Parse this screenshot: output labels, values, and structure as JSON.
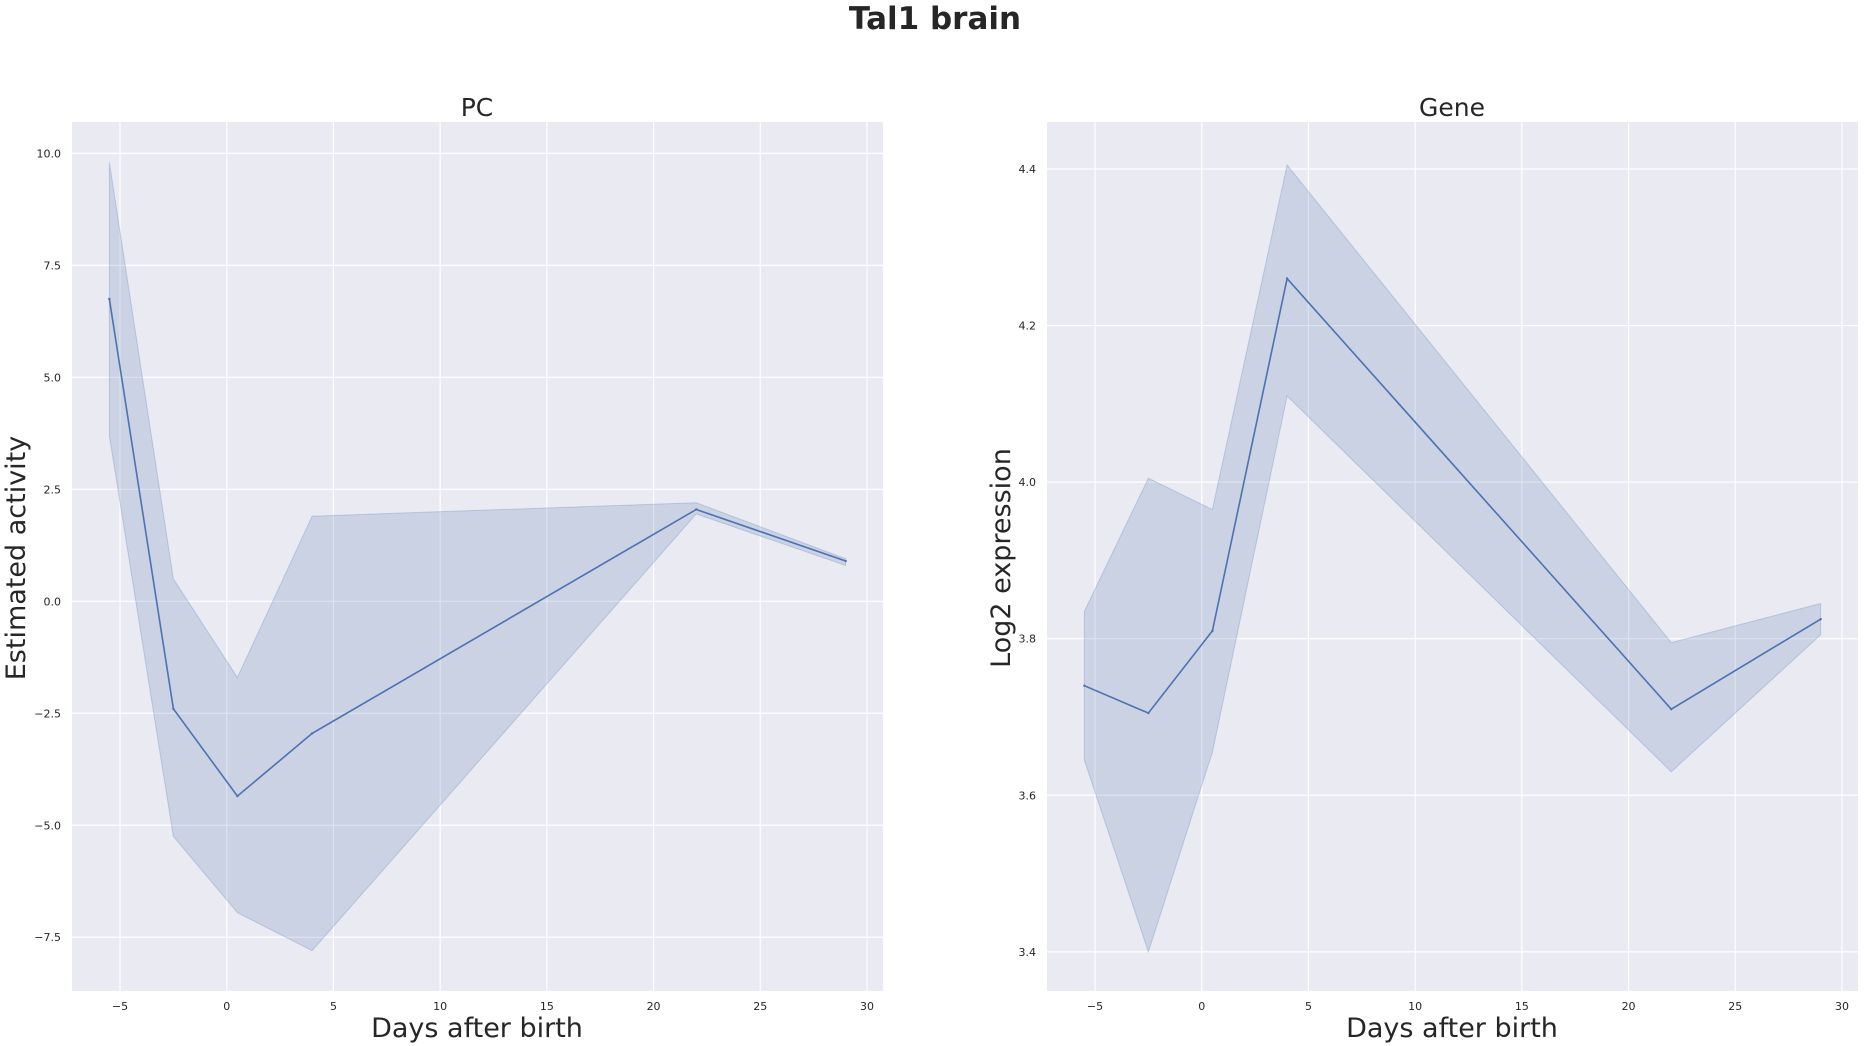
{
  "figure": {
    "suptitle": "Tal1 brain"
  },
  "chart_data": [
    {
      "type": "line",
      "title": "PC",
      "xlabel": "Days after birth",
      "ylabel": "Estimated activity",
      "xlim": [
        -7.25,
        30.75
      ],
      "ylim": [
        -8.7,
        10.7
      ],
      "xticks": [
        -5,
        0,
        5,
        10,
        15,
        20,
        25,
        30
      ],
      "xtick_labels": [
        "−5",
        "0",
        "5",
        "10",
        "15",
        "20",
        "25",
        "30"
      ],
      "yticks": [
        10.0,
        7.5,
        5.0,
        2.5,
        0.0,
        -2.5,
        -5.0,
        -7.5
      ],
      "ytick_labels": [
        "10.0",
        "7.5",
        "5.0",
        "2.5",
        "0.0",
        "−2.5",
        "−5.0",
        "−7.5"
      ],
      "grid": true,
      "colors": {
        "line": "#4c72b0",
        "band": "#4c72b0",
        "background": "#eaeaf2"
      },
      "series": [
        {
          "x": [
            -5.5,
            -2.5,
            0.5,
            4,
            22,
            29
          ],
          "y": [
            6.75,
            -2.4,
            -4.35,
            -2.95,
            2.05,
            0.9
          ],
          "ci_low": [
            3.7,
            -5.25,
            -6.95,
            -7.8,
            1.95,
            0.8
          ],
          "ci_high": [
            9.8,
            0.5,
            -1.7,
            1.9,
            2.2,
            0.95
          ]
        }
      ]
    },
    {
      "type": "line",
      "title": "Gene",
      "xlabel": "Days after birth",
      "ylabel": "Log2 expression",
      "xlim": [
        -7.25,
        30.75
      ],
      "ylim": [
        3.35,
        4.46
      ],
      "xticks": [
        -5,
        0,
        5,
        10,
        15,
        20,
        25,
        30
      ],
      "xtick_labels": [
        "−5",
        "0",
        "5",
        "10",
        "15",
        "20",
        "25",
        "30"
      ],
      "yticks": [
        4.4,
        4.2,
        4.0,
        3.8,
        3.6,
        3.4
      ],
      "ytick_labels": [
        "4.4",
        "4.2",
        "4.0",
        "3.8",
        "3.6",
        "3.4"
      ],
      "grid": true,
      "colors": {
        "line": "#4c72b0",
        "band": "#4c72b0",
        "background": "#eaeaf2"
      },
      "series": [
        {
          "x": [
            -5.5,
            -2.5,
            0.5,
            4,
            22,
            29
          ],
          "y": [
            3.74,
            3.705,
            3.81,
            4.26,
            3.71,
            3.825
          ],
          "ci_low": [
            3.645,
            3.4,
            3.655,
            4.11,
            3.63,
            3.805
          ],
          "ci_high": [
            3.835,
            4.005,
            3.965,
            4.405,
            3.795,
            3.845
          ]
        }
      ]
    }
  ]
}
